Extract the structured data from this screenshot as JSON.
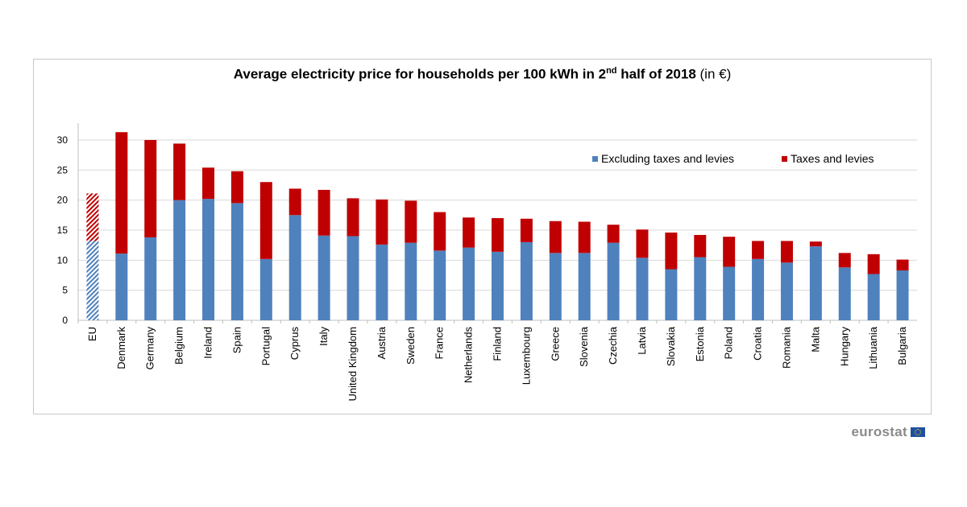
{
  "chart_data": {
    "type": "bar",
    "stacked": true,
    "title_main": "Average electricity price for households per 100 kWh in 2",
    "title_sup": "nd",
    "title_rest": " half of 2018",
    "title_unit": " (in €)",
    "ylim": [
      0,
      32
    ],
    "yticks": [
      0,
      5,
      10,
      15,
      20,
      25,
      30
    ],
    "grid": true,
    "legend_position": "top-right",
    "categories": [
      "EU",
      "Denmark",
      "Germany",
      "Belgium",
      "Ireland",
      "Spain",
      "Portugal",
      "Cyprus",
      "Italy",
      "United Kingdom",
      "Austria",
      "Sweden",
      "France",
      "Netherlands",
      "Finland",
      "Luxembourg",
      "Greece",
      "Slovenia",
      "Czechia",
      "Latvia",
      "Slovakia",
      "Estonia",
      "Poland",
      "Croatia",
      "Romania",
      "Malta",
      "Hungary",
      "Lithuania",
      "Bulgaria"
    ],
    "series": [
      {
        "name": "Excluding taxes and levies",
        "color": "#4f81bd",
        "values": [
          13.2,
          11.1,
          13.8,
          20.0,
          20.2,
          19.5,
          10.2,
          17.5,
          14.1,
          14.0,
          12.6,
          12.9,
          11.6,
          12.1,
          11.4,
          13.0,
          11.2,
          11.2,
          12.9,
          10.4,
          8.5,
          10.5,
          8.9,
          10.2,
          9.6,
          12.3,
          8.8,
          7.7,
          8.3
        ]
      },
      {
        "name": "Taxes and levies",
        "color": "#c00000",
        "values": [
          7.9,
          20.2,
          16.2,
          9.4,
          5.2,
          5.3,
          12.8,
          4.4,
          7.6,
          6.3,
          7.5,
          7.0,
          6.4,
          5.0,
          5.6,
          3.9,
          5.3,
          5.2,
          3.0,
          4.7,
          6.1,
          3.7,
          5.0,
          3.0,
          3.6,
          0.8,
          2.4,
          3.3,
          1.8
        ]
      }
    ],
    "hatched_categories": [
      "EU"
    ]
  },
  "brand": {
    "name": "eurostat"
  }
}
